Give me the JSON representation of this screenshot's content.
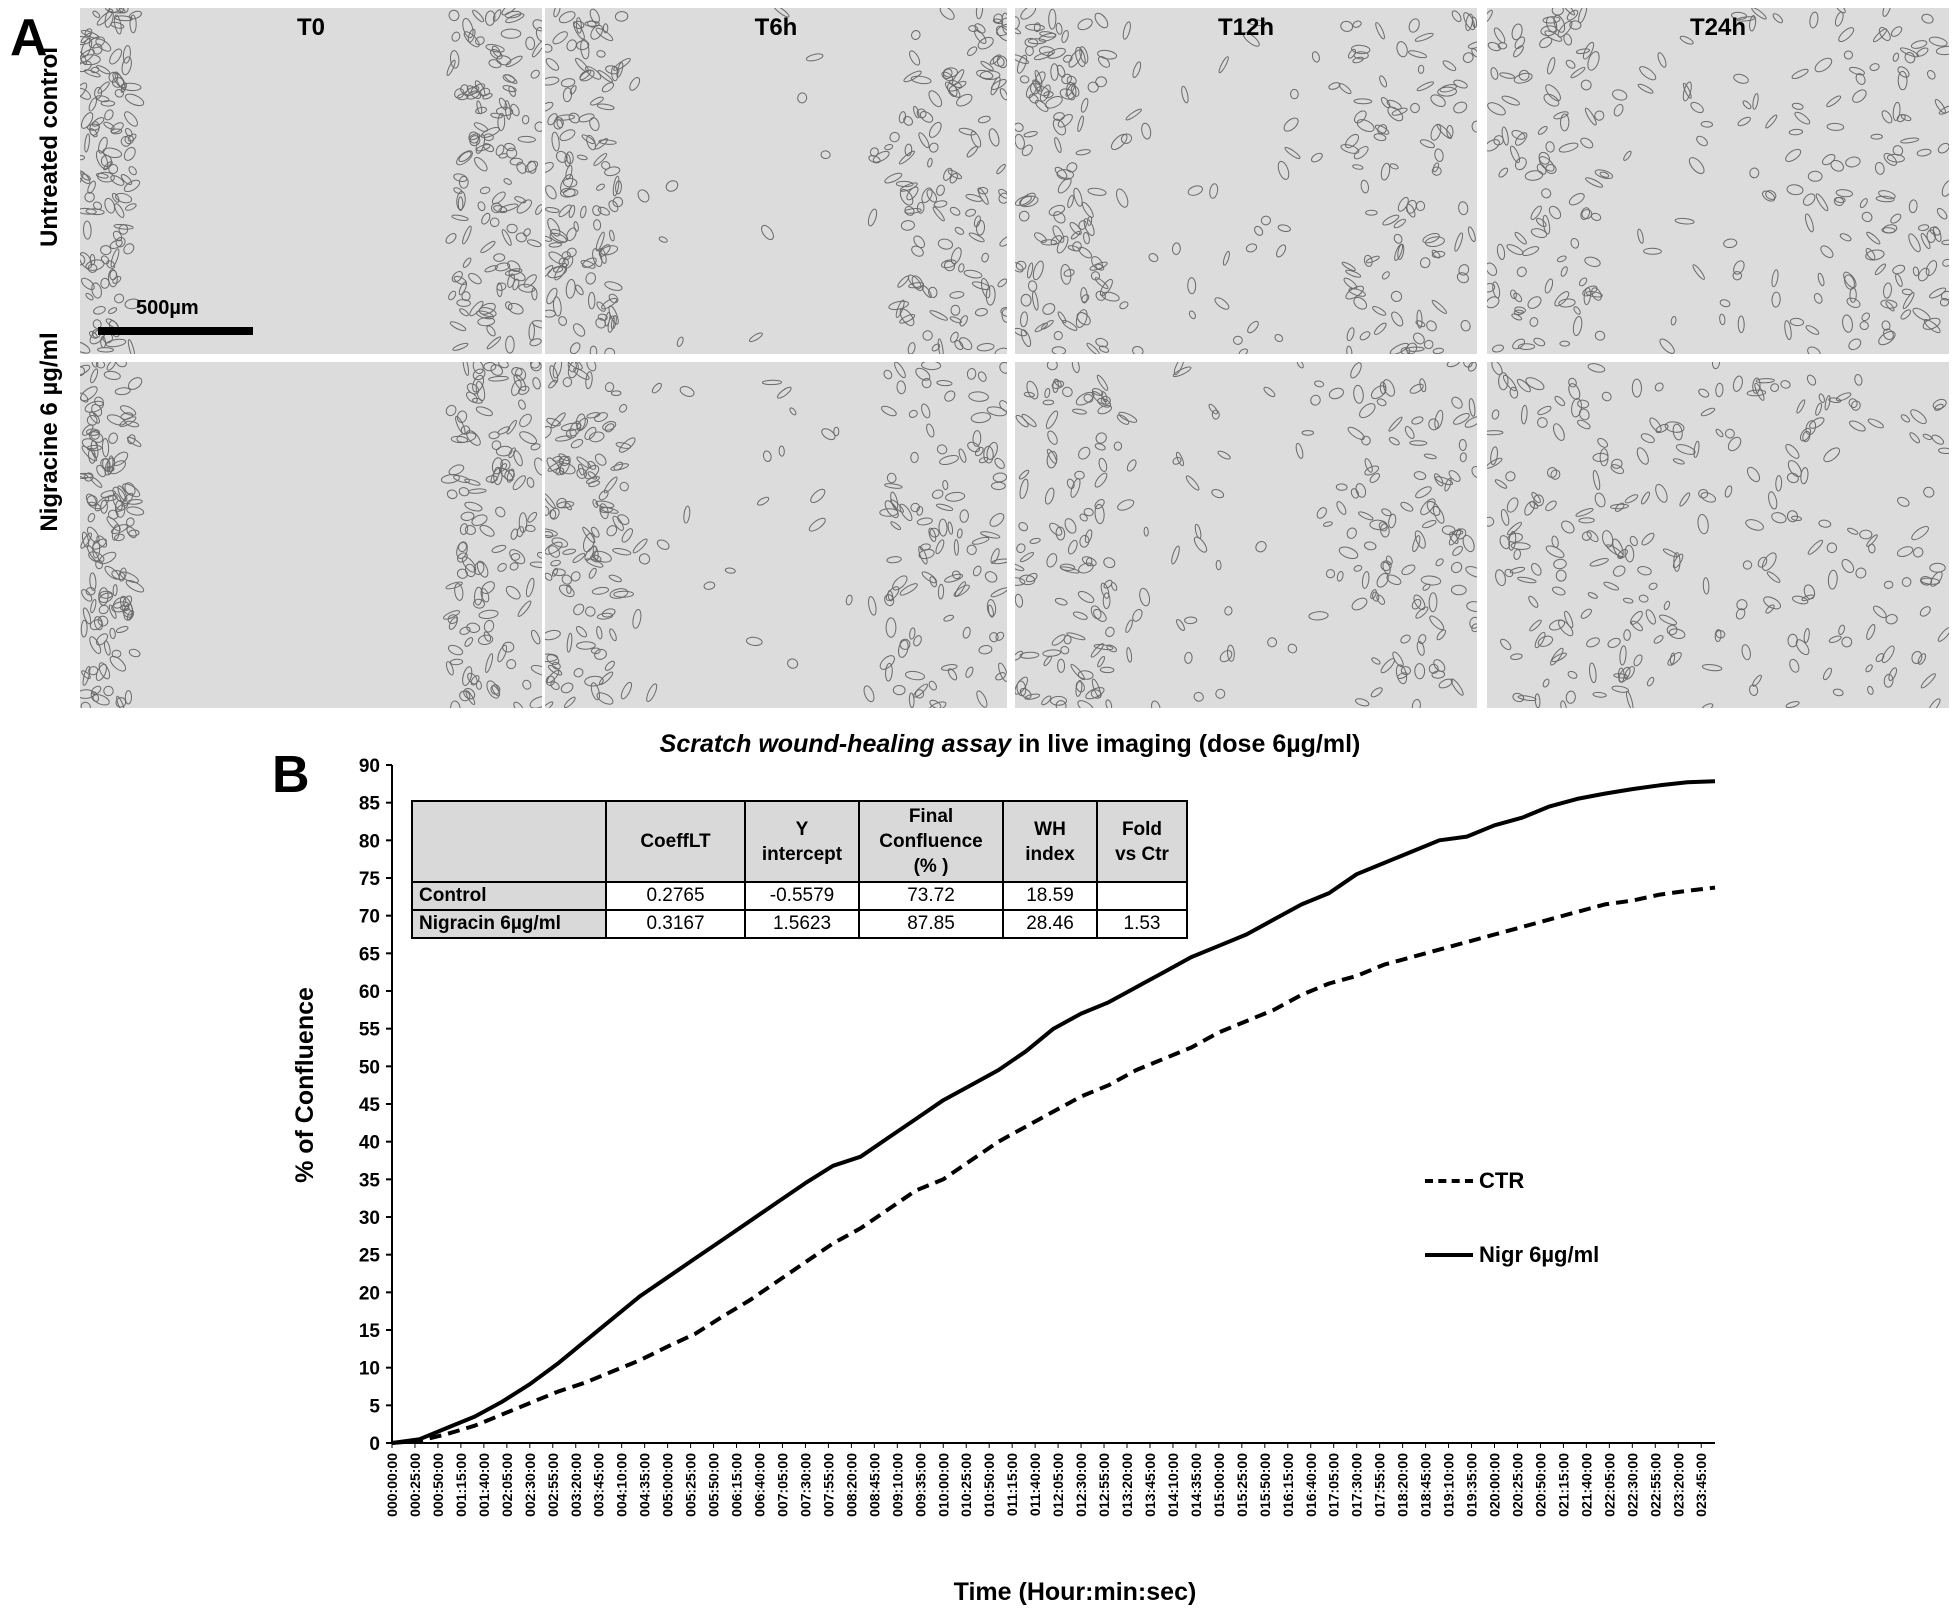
{
  "panel_a": {
    "letter": "A",
    "timepoints": [
      "T0",
      "T6h",
      "T12h",
      "T24h"
    ],
    "row_labels": [
      "Untreated control",
      "Nigracine  6 µg/ml"
    ],
    "scale_bar_label": "500µm",
    "wound_closure_fraction": {
      "untreated": [
        0.0,
        0.2,
        0.35,
        0.55
      ],
      "nigracine": [
        0.0,
        0.25,
        0.45,
        0.8
      ]
    }
  },
  "panel_b": {
    "letter": "B",
    "title_italic": "Scratch wound-healing assay",
    "title_rest": " in live imaging (dose 6µg/ml)",
    "ylabel": "% of Confluence",
    "xlabel": "Time (Hour:min:sec)",
    "legend": [
      {
        "label": "CTR",
        "style": "dashed"
      },
      {
        "label": "Nigr 6µg/ml",
        "style": "solid"
      }
    ],
    "table": {
      "headers": [
        "",
        "CoeffLT",
        "Y intercept",
        "Final Confluence (% )",
        "WH index",
        "Fold vs Ctr"
      ],
      "rows": [
        [
          "Control",
          "0.2765",
          "-0.5579",
          "73.72",
          "18.59",
          ""
        ],
        [
          "Nigracin 6µg/ml",
          "0.3167",
          "1.5623",
          "87.85",
          "28.46",
          "1.53"
        ]
      ]
    }
  },
  "chart_data": {
    "type": "line",
    "title": "Scratch wound-healing assay in live imaging (dose 6µg/ml)",
    "xlabel": "Time (Hour:min:sec)",
    "ylabel": "% of Confluence",
    "ylim": [
      0,
      90
    ],
    "yticks": [
      0,
      5,
      10,
      15,
      20,
      25,
      30,
      35,
      40,
      45,
      50,
      55,
      60,
      65,
      70,
      75,
      80,
      85,
      90
    ],
    "xlim_minutes": [
      0,
      1440
    ],
    "x_unit": "minutes",
    "xtick_labels": [
      "000:00:00",
      "000:25:00",
      "000:50:00",
      "001:15:00",
      "001:40:00",
      "002:05:00",
      "002:30:00",
      "002:55:00",
      "003:20:00",
      "003:45:00",
      "004:10:00",
      "004:35:00",
      "005:00:00",
      "005:25:00",
      "005:50:00",
      "006:15:00",
      "006:40:00",
      "007:05:00",
      "007:30:00",
      "007:55:00",
      "008:20:00",
      "008:45:00",
      "009:10:00",
      "009:35:00",
      "010:00:00",
      "010:25:00",
      "010:50:00",
      "011:15:00",
      "011:40:00",
      "012:05:00",
      "012:30:00",
      "012:55:00",
      "013:20:00",
      "013:45:00",
      "014:10:00",
      "014:35:00",
      "015:00:00",
      "015:25:00",
      "015:50:00",
      "016:15:00",
      "016:40:00",
      "017:05:00",
      "017:30:00",
      "017:55:00",
      "018:20:00",
      "018:45:00",
      "019:10:00",
      "019:35:00",
      "020:00:00",
      "020:25:00",
      "020:50:00",
      "021:15:00",
      "021:40:00",
      "022:05:00",
      "022:30:00",
      "022:55:00",
      "023:20:00",
      "023:45:00"
    ],
    "grid": false,
    "legend_position": "right",
    "series": [
      {
        "name": "CTR",
        "style": "dashed",
        "x": [
          0,
          30,
          60,
          90,
          120,
          150,
          180,
          210,
          240,
          270,
          300,
          330,
          360,
          390,
          420,
          450,
          480,
          510,
          540,
          570,
          600,
          630,
          660,
          690,
          720,
          750,
          780,
          810,
          840,
          870,
          900,
          930,
          960,
          990,
          1020,
          1050,
          1080,
          1110,
          1140,
          1170,
          1200,
          1230,
          1260,
          1290,
          1320,
          1350,
          1380,
          1410,
          1440
        ],
        "y": [
          0,
          0.3,
          1.2,
          2.3,
          3.8,
          5.3,
          6.8,
          8.0,
          9.5,
          11.0,
          12.8,
          14.5,
          16.8,
          19.0,
          21.5,
          24.0,
          26.5,
          28.5,
          31.0,
          33.5,
          35.0,
          37.5,
          40.0,
          42.0,
          44.0,
          46.0,
          47.5,
          49.5,
          51.0,
          52.5,
          54.5,
          56.0,
          57.5,
          59.5,
          61.0,
          62.0,
          63.5,
          64.5,
          65.5,
          66.5,
          67.5,
          68.5,
          69.5,
          70.5,
          71.5,
          72.0,
          72.8,
          73.3,
          73.72
        ]
      },
      {
        "name": "Nigr 6µg/ml",
        "style": "solid",
        "x": [
          0,
          30,
          60,
          90,
          120,
          150,
          180,
          210,
          240,
          270,
          300,
          330,
          360,
          390,
          420,
          450,
          480,
          510,
          540,
          570,
          600,
          630,
          660,
          690,
          720,
          750,
          780,
          810,
          840,
          870,
          900,
          930,
          960,
          990,
          1020,
          1050,
          1080,
          1110,
          1140,
          1170,
          1200,
          1230,
          1260,
          1290,
          1320,
          1350,
          1380,
          1410,
          1440
        ],
        "y": [
          0,
          0.5,
          2.0,
          3.5,
          5.5,
          7.8,
          10.5,
          13.5,
          16.5,
          19.5,
          22.0,
          24.5,
          27.0,
          29.5,
          32.0,
          34.5,
          36.8,
          38.0,
          40.5,
          43.0,
          45.5,
          47.5,
          49.5,
          52.0,
          55.0,
          57.0,
          58.5,
          60.5,
          62.5,
          64.5,
          66.0,
          67.5,
          69.5,
          71.5,
          73.0,
          75.5,
          77.0,
          78.5,
          80.0,
          80.5,
          82.0,
          83.0,
          84.5,
          85.5,
          86.2,
          86.8,
          87.3,
          87.7,
          87.85
        ]
      }
    ]
  }
}
